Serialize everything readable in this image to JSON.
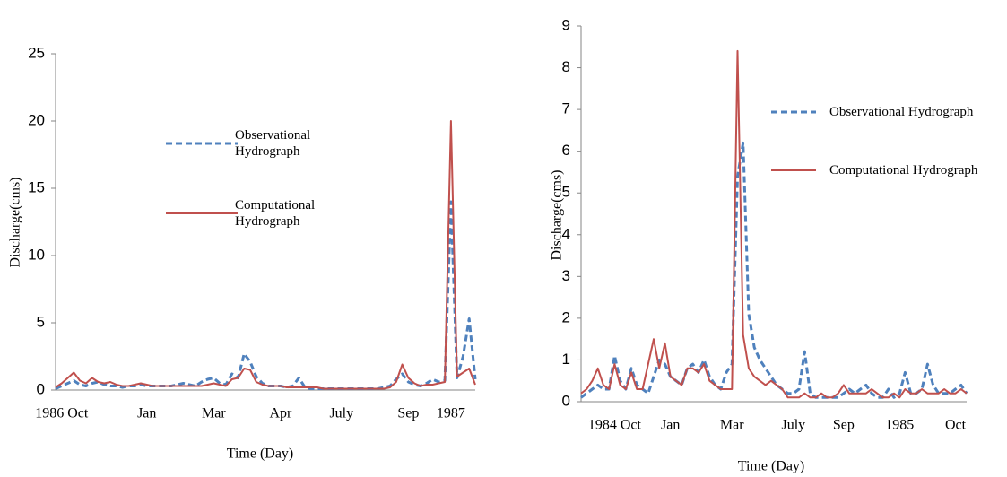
{
  "chart_data": [
    {
      "type": "line",
      "x_label": "Time (Day)",
      "y_label": "Discharge(cms)",
      "categories": [
        null,
        "1986 Oct",
        null,
        null,
        null,
        null,
        null,
        null,
        null,
        null,
        null,
        null,
        null,
        null,
        null,
        "Jan",
        null,
        null,
        null,
        null,
        null,
        null,
        null,
        null,
        null,
        null,
        "Mar",
        null,
        null,
        null,
        null,
        null,
        null,
        null,
        null,
        null,
        null,
        "Apr",
        null,
        null,
        null,
        null,
        null,
        null,
        null,
        null,
        null,
        "July",
        null,
        null,
        null,
        null,
        null,
        null,
        null,
        null,
        null,
        null,
        "Sep",
        null,
        null,
        null,
        null,
        null,
        null,
        "1987",
        null,
        null,
        null,
        null
      ],
      "series": [
        {
          "name": "Observational Hydrograph",
          "color": "#4f81bd",
          "dashed": true,
          "values": [
            0.1,
            0.3,
            0.5,
            0.7,
            0.4,
            0.3,
            0.5,
            0.6,
            0.4,
            0.3,
            0.3,
            0.2,
            0.3,
            0.3,
            0.4,
            0.3,
            0.3,
            0.3,
            0.3,
            0.3,
            0.4,
            0.5,
            0.4,
            0.3,
            0.6,
            0.8,
            0.9,
            0.5,
            0.4,
            1.2,
            0.9,
            2.7,
            2.1,
            1.0,
            0.5,
            0.3,
            0.3,
            0.3,
            0.2,
            0.3,
            0.9,
            0.2,
            0.1,
            0.1,
            0.1,
            0.1,
            0.1,
            0.1,
            0.1,
            0.1,
            0.1,
            0.1,
            0.1,
            0.1,
            0.2,
            0.3,
            0.8,
            1.2,
            0.6,
            0.4,
            0.3,
            0.5,
            0.8,
            0.6,
            0.7,
            14,
            0.9,
            2.5,
            5.3,
            0.8
          ]
        },
        {
          "name": "Computational Hydrograph",
          "color": "#c0504d",
          "dashed": false,
          "values": [
            0.2,
            0.5,
            0.9,
            1.3,
            0.7,
            0.5,
            0.9,
            0.6,
            0.5,
            0.6,
            0.4,
            0.3,
            0.3,
            0.4,
            0.5,
            0.4,
            0.3,
            0.3,
            0.3,
            0.3,
            0.3,
            0.3,
            0.3,
            0.3,
            0.3,
            0.4,
            0.5,
            0.4,
            0.3,
            0.8,
            0.9,
            1.6,
            1.5,
            0.6,
            0.4,
            0.3,
            0.3,
            0.3,
            0.2,
            0.2,
            0.2,
            0.2,
            0.2,
            0.2,
            0.1,
            0.1,
            0.1,
            0.1,
            0.1,
            0.1,
            0.1,
            0.1,
            0.1,
            0.1,
            0.1,
            0.2,
            0.6,
            1.9,
            0.9,
            0.5,
            0.3,
            0.4,
            0.4,
            0.5,
            0.6,
            20,
            1.0,
            1.3,
            1.6,
            0.4
          ]
        }
      ],
      "ylim": [
        0,
        25
      ],
      "yticks": [
        0,
        5,
        10,
        15,
        20,
        25
      ],
      "grid": false,
      "legend_position": "center"
    },
    {
      "type": "line",
      "x_label": "Time (Day)",
      "y_label": "Discharge(cms)",
      "categories": [
        null,
        null,
        null,
        null,
        null,
        null,
        "1984 Oct",
        null,
        null,
        null,
        null,
        null,
        null,
        null,
        null,
        null,
        "Jan",
        null,
        null,
        null,
        null,
        null,
        null,
        null,
        null,
        null,
        null,
        "Mar",
        null,
        null,
        null,
        null,
        null,
        null,
        null,
        null,
        null,
        null,
        "July",
        null,
        null,
        null,
        null,
        null,
        null,
        null,
        null,
        "Sep",
        null,
        null,
        null,
        null,
        null,
        null,
        null,
        null,
        null,
        "1985",
        null,
        null,
        null,
        null,
        null,
        null,
        null,
        null,
        null,
        "Oct",
        null,
        null
      ],
      "series": [
        {
          "name": "Observational Hydrograph",
          "color": "#4f81bd",
          "dashed": true,
          "values": [
            0.1,
            0.2,
            0.3,
            0.4,
            0.3,
            0.3,
            1.1,
            0.5,
            0.3,
            0.8,
            0.4,
            0.3,
            0.2,
            0.6,
            1.0,
            0.9,
            0.6,
            0.5,
            0.4,
            0.8,
            0.9,
            0.7,
            1.0,
            0.6,
            0.4,
            0.3,
            0.7,
            0.9,
            5.4,
            6.2,
            2.1,
            1.3,
            1.0,
            0.8,
            0.6,
            0.4,
            0.3,
            0.2,
            0.2,
            0.3,
            1.2,
            0.2,
            0.1,
            0.1,
            0.1,
            0.1,
            0.1,
            0.2,
            0.3,
            0.2,
            0.3,
            0.4,
            0.2,
            0.1,
            0.1,
            0.3,
            0.1,
            0.2,
            0.7,
            0.2,
            0.2,
            0.3,
            0.9,
            0.4,
            0.2,
            0.2,
            0.2,
            0.3,
            0.4,
            0.2
          ]
        },
        {
          "name": "Computational Hydrograph",
          "color": "#c0504d",
          "dashed": false,
          "values": [
            0.2,
            0.3,
            0.5,
            0.8,
            0.4,
            0.3,
            0.9,
            0.4,
            0.3,
            0.7,
            0.3,
            0.3,
            0.9,
            1.5,
            0.8,
            1.4,
            0.6,
            0.5,
            0.4,
            0.8,
            0.8,
            0.7,
            0.9,
            0.5,
            0.4,
            0.3,
            0.3,
            0.3,
            8.4,
            1.6,
            0.8,
            0.6,
            0.5,
            0.4,
            0.5,
            0.4,
            0.3,
            0.1,
            0.1,
            0.1,
            0.2,
            0.1,
            0.1,
            0.2,
            0.1,
            0.1,
            0.2,
            0.4,
            0.2,
            0.2,
            0.2,
            0.2,
            0.3,
            0.2,
            0.1,
            0.1,
            0.2,
            0.1,
            0.3,
            0.2,
            0.2,
            0.3,
            0.2,
            0.2,
            0.2,
            0.3,
            0.2,
            0.2,
            0.3,
            0.2
          ]
        }
      ],
      "ylim": [
        0,
        9
      ],
      "yticks": [
        0,
        1,
        2,
        3,
        4,
        5,
        6,
        7,
        8,
        9
      ],
      "grid": false,
      "legend_position": "upper right"
    }
  ]
}
